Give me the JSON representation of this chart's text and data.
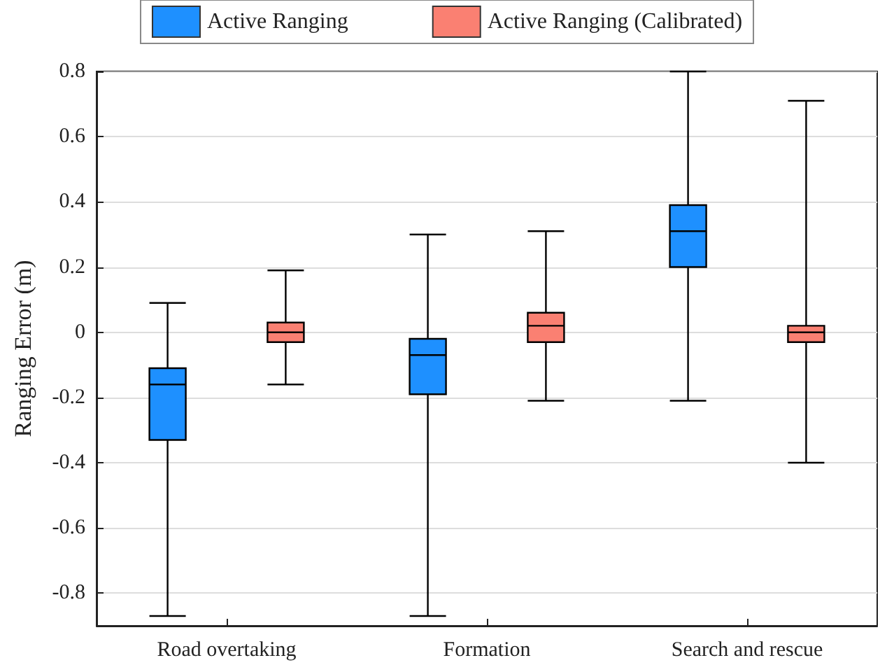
{
  "chart_data": {
    "type": "box",
    "ylabel": "Ranging Error (m)",
    "categories": [
      "Road overtaking",
      "Formation",
      "Search and rescue"
    ],
    "series": [
      {
        "name": "Active Ranging",
        "color": "#1e90ff",
        "boxes": [
          {
            "low": -0.87,
            "q1": -0.33,
            "median": -0.16,
            "q3": -0.11,
            "high": 0.09
          },
          {
            "low": -0.87,
            "q1": -0.19,
            "median": -0.07,
            "q3": -0.02,
            "high": 0.3
          },
          {
            "low": -0.21,
            "q1": 0.2,
            "median": 0.31,
            "q3": 0.39,
            "high": 0.8
          }
        ]
      },
      {
        "name": "Active Ranging (Calibrated)",
        "color": "#fa8072",
        "boxes": [
          {
            "low": -0.16,
            "q1": -0.03,
            "median": 0,
            "q3": 0.03,
            "high": 0.19
          },
          {
            "low": -0.21,
            "q1": -0.03,
            "median": 0.02,
            "q3": 0.06,
            "high": 0.31
          },
          {
            "low": -0.4,
            "q1": -0.03,
            "median": 0,
            "q3": 0.02,
            "high": 0.71
          }
        ]
      }
    ],
    "ylim": [
      -0.9,
      0.8
    ],
    "yticks": [
      -0.8,
      -0.6,
      -0.4,
      -0.2,
      0,
      0.2,
      0.4,
      0.6,
      0.8
    ],
    "grid": "y",
    "legend": "top"
  }
}
